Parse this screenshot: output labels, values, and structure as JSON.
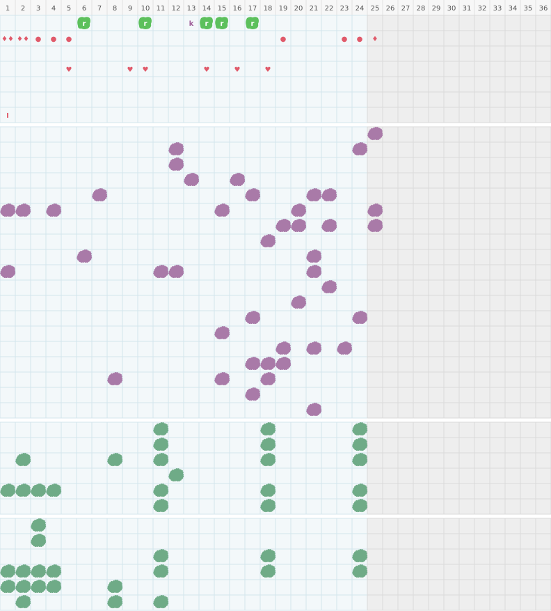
{
  "header": {
    "columns": [
      "1",
      "2",
      "3",
      "4",
      "5",
      "6",
      "7",
      "8",
      "9",
      "10",
      "11",
      "12",
      "13",
      "14",
      "15",
      "16",
      "17",
      "18",
      "19",
      "20",
      "21",
      "22",
      "23",
      "24",
      "25",
      "26",
      "27",
      "28",
      "29",
      "30",
      "31",
      "32",
      "33",
      "34",
      "35",
      "36"
    ]
  },
  "top": {
    "rows": [
      [
        {
          "col": 6,
          "text": "r",
          "fill": "#5cc05c"
        },
        {
          "col": 10,
          "text": "r",
          "fill": "#5cc05c"
        },
        {
          "col": 13,
          "text": "k",
          "color": "#a0609a"
        },
        {
          "col": 14,
          "text": "r",
          "fill": "#5cc05c"
        },
        {
          "col": 15,
          "text": "r",
          "fill": "#5cc05c"
        },
        {
          "col": 17,
          "text": "r",
          "fill": "#5cc05c"
        }
      ],
      [
        {
          "col": 1,
          "text": "♦♦",
          "color": "#e05a6a"
        },
        {
          "col": 2,
          "text": "♦♦",
          "color": "#e05a6a"
        },
        {
          "col": 3,
          "text": "●",
          "color": "#e05a6a"
        },
        {
          "col": 4,
          "text": "●",
          "color": "#e05a6a"
        },
        {
          "col": 5,
          "text": "●",
          "color": "#e05a6a"
        },
        {
          "col": 19,
          "text": "●",
          "color": "#e05a6a"
        },
        {
          "col": 23,
          "text": "●",
          "color": "#e05a6a"
        },
        {
          "col": 24,
          "text": "●",
          "color": "#e05a6a"
        },
        {
          "col": 25,
          "text": "♦",
          "color": "#e05a6a"
        }
      ],
      [],
      [
        {
          "col": 5,
          "text": "♥",
          "color": "#e05a6a"
        },
        {
          "col": 9,
          "text": "♥",
          "color": "#e05a6a"
        },
        {
          "col": 10,
          "text": "♥",
          "color": "#e05a6a"
        },
        {
          "col": 14,
          "text": "♥",
          "color": "#e05a6a"
        },
        {
          "col": 16,
          "text": "♥",
          "color": "#e05a6a"
        },
        {
          "col": 18,
          "text": "♥",
          "color": "#e05a6a"
        }
      ],
      [],
      [],
      [
        {
          "col": 1,
          "text": "I",
          "color": "#e05a6a"
        }
      ]
    ]
  },
  "sections": [
    {
      "color": "#a97aa8",
      "rows": [
        [
          25
        ],
        [
          12,
          24
        ],
        [
          12
        ],
        [
          13,
          16
        ],
        [
          7,
          17,
          21,
          22
        ],
        [
          1,
          2,
          4,
          15,
          20,
          25
        ],
        [
          19,
          20,
          22,
          25
        ],
        [
          18
        ],
        [
          6,
          21
        ],
        [
          1,
          11,
          12,
          21
        ],
        [
          22
        ],
        [
          20
        ],
        [
          17,
          24
        ],
        [
          15
        ],
        [
          19,
          21,
          23
        ],
        [
          17,
          18,
          19
        ],
        [
          8,
          15,
          18
        ],
        [
          17
        ],
        [
          21
        ]
      ]
    },
    {
      "color": "#6fab87",
      "rows": [
        [
          11,
          18,
          24
        ],
        [
          11,
          18,
          24
        ],
        [
          2,
          8,
          11,
          18,
          24
        ],
        [
          12
        ],
        [
          1,
          2,
          3,
          4,
          11,
          18,
          24
        ],
        [
          11,
          18,
          24
        ]
      ]
    },
    {
      "color": "#6fab87",
      "rows": [
        [
          3
        ],
        [
          3
        ],
        [
          11,
          18,
          24
        ],
        [
          1,
          2,
          3,
          4,
          11,
          18,
          24
        ],
        [
          1,
          2,
          3,
          4,
          8
        ],
        [
          2,
          8,
          11
        ]
      ]
    }
  ]
}
